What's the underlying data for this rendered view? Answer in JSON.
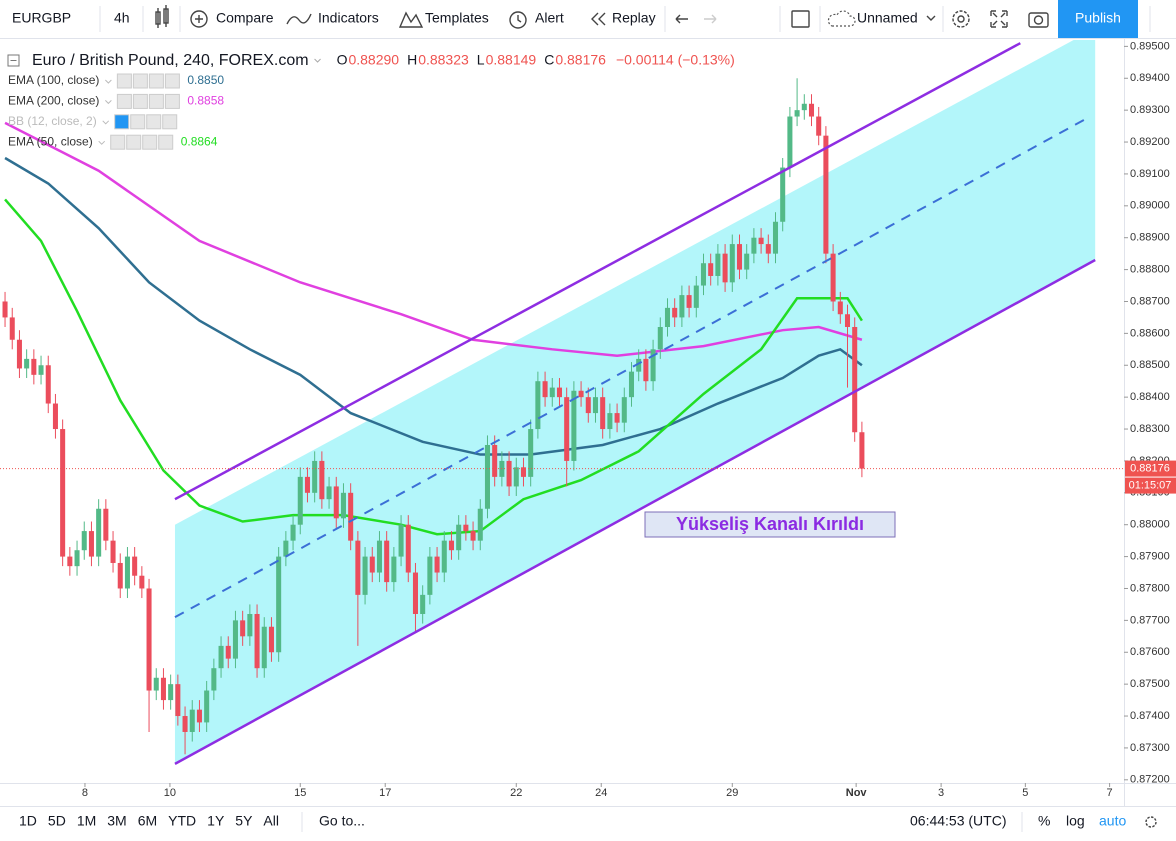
{
  "toolbar": {
    "symbol": "EURGBP",
    "interval": "4h",
    "compare": "Compare",
    "indicators": "Indicators",
    "templates": "Templates",
    "alert": "Alert",
    "replay": "Replay",
    "layout": "Unnamed",
    "publish": "Publish"
  },
  "bottom_bar": {
    "ranges": [
      "1D",
      "5D",
      "1M",
      "3M",
      "6M",
      "YTD",
      "1Y",
      "5Y",
      "All"
    ],
    "goto": "Go to...",
    "clock": "06:44:53 (UTC)",
    "options": [
      "%",
      "log",
      "auto"
    ]
  },
  "chart_data": {
    "type": "candlestick",
    "title": "Euro / British Pound, 240, FOREX.com",
    "ohlc_header": [
      {
        "key": "O",
        "value": "0.88290"
      },
      {
        "key": "H",
        "value": "0.88323"
      },
      {
        "key": "L",
        "value": "0.88149"
      },
      {
        "key": "C",
        "value": "0.88176"
      }
    ],
    "change": "−0.00114 (−0.13%)",
    "up_color": "#53b987",
    "down_color": "#eb4d5c",
    "grid": false,
    "x": [
      0,
      1,
      2,
      3,
      4,
      5,
      6,
      7,
      8,
      9,
      10,
      11,
      12,
      13,
      14,
      15,
      16,
      17,
      18,
      19,
      20,
      21,
      22,
      23,
      24,
      25,
      26,
      27,
      28,
      29,
      30,
      31,
      32,
      33,
      34,
      35,
      36,
      37,
      38,
      39,
      40,
      41,
      42,
      43,
      44,
      45,
      46,
      47,
      48,
      49,
      50,
      51,
      52,
      53,
      54,
      55,
      56,
      57,
      58,
      59,
      60,
      61,
      62,
      63,
      64,
      65,
      66,
      67,
      68,
      69,
      70,
      71,
      72,
      73,
      74,
      75,
      76,
      77,
      78,
      79,
      80,
      81,
      82,
      83,
      84,
      85,
      86,
      87,
      88,
      89,
      90,
      91,
      92,
      93,
      94,
      95,
      96,
      97,
      98,
      99,
      100,
      101,
      102,
      103,
      104,
      105,
      106,
      107,
      108,
      109,
      110,
      111,
      112,
      113,
      114,
      115,
      116,
      117,
      118,
      119
    ],
    "open": [
      0.887,
      0.8865,
      0.8858,
      0.8849,
      0.8852,
      0.8847,
      0.885,
      0.8838,
      0.883,
      0.879,
      0.8787,
      0.8792,
      0.8798,
      0.879,
      0.8805,
      0.8795,
      0.8788,
      0.878,
      0.879,
      0.8784,
      0.878,
      0.8748,
      0.8752,
      0.8745,
      0.875,
      0.874,
      0.8735,
      0.8742,
      0.8738,
      0.8748,
      0.8755,
      0.8762,
      0.8758,
      0.877,
      0.8765,
      0.8772,
      0.8755,
      0.8768,
      0.876,
      0.879,
      0.8795,
      0.88,
      0.8815,
      0.881,
      0.882,
      0.8808,
      0.8812,
      0.8802,
      0.881,
      0.8795,
      0.8778,
      0.879,
      0.8785,
      0.8795,
      0.8782,
      0.879,
      0.88,
      0.8785,
      0.8772,
      0.8778,
      0.879,
      0.8785,
      0.8795,
      0.8792,
      0.88,
      0.8798,
      0.8795,
      0.8805,
      0.8825,
      0.8815,
      0.882,
      0.8812,
      0.8818,
      0.8815,
      0.883,
      0.8845,
      0.884,
      0.8843,
      0.884,
      0.882,
      0.8842,
      0.884,
      0.8835,
      0.884,
      0.883,
      0.8835,
      0.8832,
      0.884,
      0.8848,
      0.8852,
      0.8845,
      0.8855,
      0.8862,
      0.8868,
      0.8865,
      0.8872,
      0.8868,
      0.8875,
      0.8882,
      0.8878,
      0.8885,
      0.8876,
      0.8888,
      0.888,
      0.8885,
      0.889,
      0.8888,
      0.8885,
      0.8895,
      0.8912,
      0.8928,
      0.893,
      0.8932,
      0.8928,
      0.8922,
      0.8885,
      0.887,
      0.8866,
      0.8862,
      0.8829
    ],
    "high": [
      0.8873,
      0.8868,
      0.8861,
      0.8855,
      0.8855,
      0.8853,
      0.8853,
      0.8841,
      0.8833,
      0.8793,
      0.8795,
      0.8801,
      0.8801,
      0.8808,
      0.8808,
      0.8798,
      0.8791,
      0.8793,
      0.8793,
      0.8787,
      0.8783,
      0.8755,
      0.8755,
      0.8753,
      0.8753,
      0.8743,
      0.8745,
      0.8745,
      0.8751,
      0.8758,
      0.8765,
      0.8765,
      0.8773,
      0.8773,
      0.8775,
      0.8775,
      0.8771,
      0.8771,
      0.8793,
      0.8798,
      0.8803,
      0.8818,
      0.8818,
      0.8823,
      0.8823,
      0.8815,
      0.8815,
      0.8813,
      0.8813,
      0.8798,
      0.8793,
      0.8793,
      0.8798,
      0.8798,
      0.8793,
      0.8803,
      0.8803,
      0.8788,
      0.8781,
      0.8793,
      0.8793,
      0.8798,
      0.8798,
      0.8803,
      0.8803,
      0.8801,
      0.8808,
      0.8828,
      0.8828,
      0.8823,
      0.8823,
      0.8821,
      0.8821,
      0.8833,
      0.8848,
      0.8848,
      0.8846,
      0.8846,
      0.8843,
      0.8845,
      0.8845,
      0.8843,
      0.8843,
      0.8843,
      0.8838,
      0.8838,
      0.8843,
      0.8851,
      0.8855,
      0.8855,
      0.8858,
      0.8865,
      0.8871,
      0.8871,
      0.8875,
      0.8875,
      0.8878,
      0.8885,
      0.8885,
      0.8888,
      0.8888,
      0.8891,
      0.8891,
      0.8888,
      0.8893,
      0.8893,
      0.8891,
      0.8898,
      0.8915,
      0.8931,
      0.894,
      0.8935,
      0.8935,
      0.8931,
      0.8925,
      0.8888,
      0.8873,
      0.8869,
      0.8865,
      0.88323
    ],
    "low": [
      0.8862,
      0.8855,
      0.8846,
      0.8846,
      0.8844,
      0.8844,
      0.8835,
      0.8827,
      0.8787,
      0.8784,
      0.8784,
      0.8789,
      0.8787,
      0.8787,
      0.8792,
      0.8785,
      0.8777,
      0.8777,
      0.8781,
      0.8777,
      0.8735,
      0.8745,
      0.8742,
      0.8742,
      0.8737,
      0.8728,
      0.8732,
      0.8735,
      0.8735,
      0.8745,
      0.8752,
      0.8755,
      0.8755,
      0.8762,
      0.8762,
      0.8752,
      0.8752,
      0.8757,
      0.8757,
      0.8787,
      0.8792,
      0.8797,
      0.8807,
      0.8807,
      0.8805,
      0.8805,
      0.8799,
      0.8799,
      0.8792,
      0.8762,
      0.8775,
      0.8782,
      0.8782,
      0.8779,
      0.8779,
      0.8787,
      0.8782,
      0.8766,
      0.8769,
      0.8775,
      0.8782,
      0.8782,
      0.8789,
      0.8789,
      0.8795,
      0.8792,
      0.8792,
      0.8802,
      0.8812,
      0.8812,
      0.8809,
      0.8809,
      0.8812,
      0.8812,
      0.8827,
      0.8837,
      0.8837,
      0.8837,
      0.8812,
      0.8817,
      0.8837,
      0.8832,
      0.8832,
      0.8827,
      0.8827,
      0.8829,
      0.8829,
      0.8837,
      0.8845,
      0.8842,
      0.8842,
      0.8852,
      0.8859,
      0.8862,
      0.8862,
      0.8865,
      0.8865,
      0.8872,
      0.8875,
      0.8875,
      0.8873,
      0.8873,
      0.8877,
      0.8877,
      0.8882,
      0.8885,
      0.8882,
      0.8882,
      0.8892,
      0.8909,
      0.8925,
      0.8927,
      0.8925,
      0.8919,
      0.8882,
      0.8867,
      0.8863,
      0.8843,
      0.8826,
      0.88149
    ],
    "close": [
      0.8865,
      0.8858,
      0.8849,
      0.8852,
      0.8847,
      0.885,
      0.8838,
      0.883,
      0.879,
      0.8787,
      0.8792,
      0.8798,
      0.879,
      0.8805,
      0.8795,
      0.8788,
      0.878,
      0.879,
      0.8784,
      0.878,
      0.8748,
      0.8752,
      0.8745,
      0.875,
      0.874,
      0.8735,
      0.8742,
      0.8738,
      0.8748,
      0.8755,
      0.8762,
      0.8758,
      0.877,
      0.8765,
      0.8772,
      0.8755,
      0.8768,
      0.876,
      0.879,
      0.8795,
      0.88,
      0.8815,
      0.881,
      0.882,
      0.8808,
      0.8812,
      0.8802,
      0.881,
      0.8795,
      0.8778,
      0.879,
      0.8785,
      0.8795,
      0.8782,
      0.879,
      0.88,
      0.8785,
      0.8772,
      0.8778,
      0.879,
      0.8785,
      0.8795,
      0.8792,
      0.88,
      0.8798,
      0.8795,
      0.8805,
      0.8825,
      0.8815,
      0.882,
      0.8812,
      0.8818,
      0.8815,
      0.883,
      0.8845,
      0.884,
      0.8843,
      0.884,
      0.882,
      0.8842,
      0.884,
      0.8835,
      0.884,
      0.883,
      0.8835,
      0.8832,
      0.884,
      0.8848,
      0.8852,
      0.8845,
      0.8855,
      0.8862,
      0.8868,
      0.8865,
      0.8872,
      0.8868,
      0.8875,
      0.8882,
      0.8878,
      0.8885,
      0.8876,
      0.8888,
      0.888,
      0.8885,
      0.889,
      0.8888,
      0.8885,
      0.8895,
      0.8912,
      0.8928,
      0.893,
      0.8932,
      0.8928,
      0.8922,
      0.8885,
      0.887,
      0.8866,
      0.8862,
      0.8829,
      0.88176
    ],
    "last_price_label": "0.88176",
    "countdown": "01:15:07",
    "series": [
      {
        "name": "EMA (100, close)",
        "color": "#2f6f91",
        "last_value_label": "0.8850",
        "x": [
          0,
          6,
          13,
          20,
          27,
          34,
          41,
          48,
          58,
          66,
          73,
          83,
          91,
          99,
          108,
          113,
          116,
          119
        ],
        "values": [
          0.8915,
          0.8907,
          0.8893,
          0.8876,
          0.8864,
          0.8855,
          0.8847,
          0.8835,
          0.8826,
          0.8822,
          0.8822,
          0.8825,
          0.883,
          0.8838,
          0.8846,
          0.8853,
          0.8855,
          0.885
        ]
      },
      {
        "name": "EMA (200, close)",
        "color": "#e040e0",
        "last_value_label": "0.8858",
        "x": [
          0,
          13,
          27,
          41,
          55,
          65,
          76,
          85,
          97,
          108,
          113,
          119
        ],
        "values": [
          0.8926,
          0.8911,
          0.8889,
          0.8876,
          0.8866,
          0.8858,
          0.8855,
          0.8853,
          0.8856,
          0.8861,
          0.8862,
          0.8858
        ]
      },
      {
        "name": "EMA (50, close)",
        "color": "#22dd22",
        "last_value_label": "0.8864",
        "x": [
          0,
          5,
          10,
          16,
          22,
          27,
          33,
          40,
          47,
          55,
          60,
          66,
          72,
          80,
          88,
          97,
          105,
          110,
          115,
          117,
          119
        ],
        "values": [
          0.8902,
          0.8889,
          0.8867,
          0.8839,
          0.8817,
          0.8806,
          0.8801,
          0.8803,
          0.8803,
          0.88,
          0.8797,
          0.8798,
          0.8808,
          0.8814,
          0.8823,
          0.8841,
          0.8855,
          0.8871,
          0.8871,
          0.8871,
          0.8864
        ]
      }
    ],
    "hidden_indicators": [
      "BB (12, close, 2)"
    ],
    "channel": {
      "fill": {
        "color": "#b3f6fa",
        "x": [
          23.6,
          148.4,
          151.4,
          151.4,
          23.6
        ],
        "y": [
          0.88,
          0.8952,
          0.8952,
          0.8883,
          0.8725
        ]
      },
      "upper": {
        "color": "#8e2de2",
        "x": [
          23.6,
          141
        ],
        "y": [
          0.8808,
          0.8951
        ]
      },
      "middle": {
        "color": "#3b6fd6",
        "x": [
          23.6,
          150.7
        ],
        "y": [
          0.8771,
          0.8928
        ]
      },
      "lower": {
        "color": "#8e2de2",
        "x": [
          23.6,
          151.4
        ],
        "y": [
          0.8725,
          0.8883
        ]
      }
    },
    "annotation": "Yükseliş Kanalı Kırıldı",
    "xlim": [
      -0.7,
      155.4
    ],
    "xticks": [
      {
        "value": 11.1,
        "label": "8"
      },
      {
        "value": 22.9,
        "label": "10"
      },
      {
        "value": 41,
        "label": "15"
      },
      {
        "value": 52.8,
        "label": "17"
      },
      {
        "value": 71,
        "label": "22"
      },
      {
        "value": 82.8,
        "label": "24"
      },
      {
        "value": 101,
        "label": "29"
      },
      {
        "value": 118.2,
        "label": "Nov"
      },
      {
        "value": 130,
        "label": "3"
      },
      {
        "value": 141.7,
        "label": "5"
      },
      {
        "value": 153.4,
        "label": "7"
      }
    ],
    "ylim": [
      0.8719,
      0.8952
    ],
    "yticks": [
      {
        "value": 0.872,
        "label": "0.87200"
      },
      {
        "value": 0.873,
        "label": "0.87300"
      },
      {
        "value": 0.874,
        "label": "0.87400"
      },
      {
        "value": 0.875,
        "label": "0.87500"
      },
      {
        "value": 0.876,
        "label": "0.87600"
      },
      {
        "value": 0.877,
        "label": "0.87700"
      },
      {
        "value": 0.878,
        "label": "0.87800"
      },
      {
        "value": 0.879,
        "label": "0.87900"
      },
      {
        "value": 0.88,
        "label": "0.88000"
      },
      {
        "value": 0.881,
        "label": "0.88100"
      },
      {
        "value": 0.882,
        "label": "0.88200"
      },
      {
        "value": 0.883,
        "label": "0.88300"
      },
      {
        "value": 0.884,
        "label": "0.88400"
      },
      {
        "value": 0.885,
        "label": "0.88500"
      },
      {
        "value": 0.886,
        "label": "0.88600"
      },
      {
        "value": 0.887,
        "label": "0.88700"
      },
      {
        "value": 0.888,
        "label": "0.88800"
      },
      {
        "value": 0.889,
        "label": "0.88900"
      },
      {
        "value": 0.89,
        "label": "0.89000"
      },
      {
        "value": 0.891,
        "label": "0.89100"
      },
      {
        "value": 0.892,
        "label": "0.89200"
      },
      {
        "value": 0.893,
        "label": "0.89300"
      },
      {
        "value": 0.894,
        "label": "0.89400"
      },
      {
        "value": 0.895,
        "label": "0.89500"
      }
    ]
  }
}
